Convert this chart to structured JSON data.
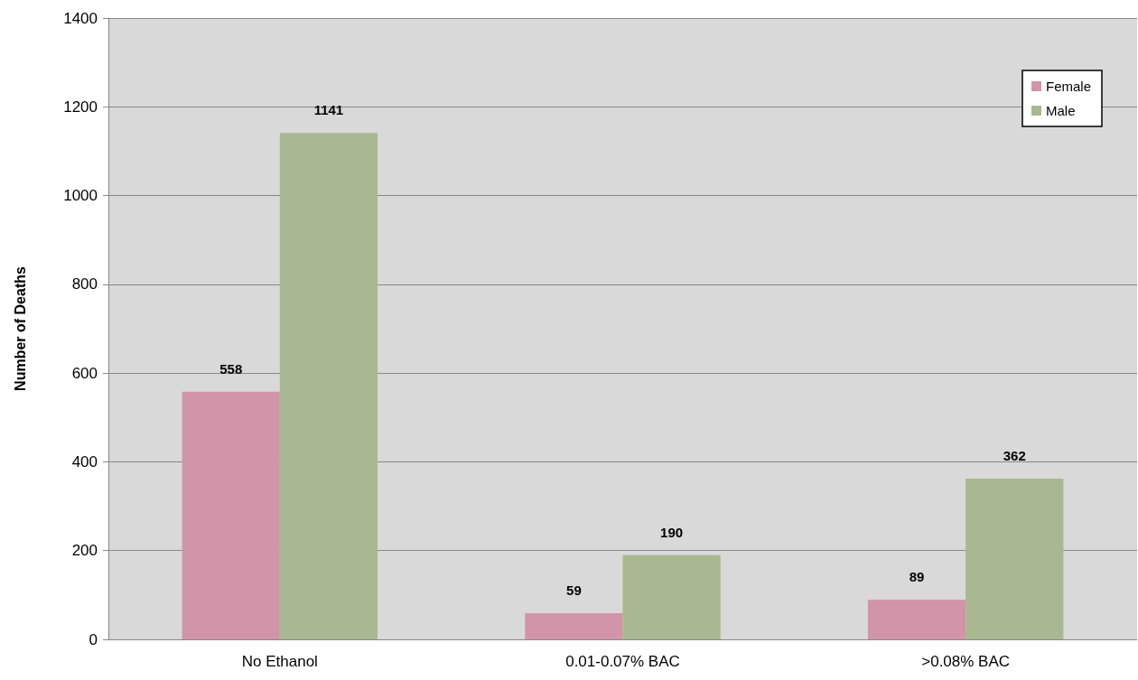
{
  "chart_data": {
    "type": "bar",
    "ylabel": "Number of Deaths",
    "categories": [
      "No Ethanol",
      "0.01-0.07% BAC",
      ">0.08% BAC"
    ],
    "series": [
      {
        "name": "Female",
        "color": "#d294a8",
        "values": [
          558,
          59,
          89
        ]
      },
      {
        "name": "Male",
        "color": "#a8b890",
        "values": [
          1141,
          190,
          362
        ]
      }
    ],
    "ylim": [
      0,
      1400
    ],
    "yticks": [
      0,
      200,
      400,
      600,
      800,
      1000,
      1200,
      1400
    ],
    "grid": "y",
    "legend": "top right",
    "data_labels": true
  }
}
